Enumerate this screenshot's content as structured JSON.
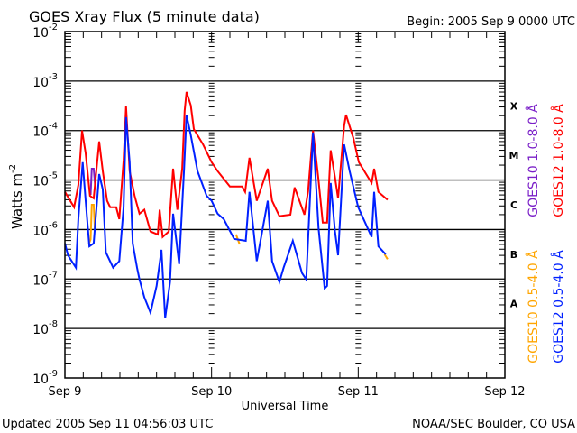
{
  "chart_data": {
    "type": "line",
    "title": "GOES Xray Flux (5 minute data)",
    "begin_label": "Begin:  2005 Sep 9 0000 UTC",
    "xlabel": "Universal Time",
    "ylabel": "Watts m",
    "ylabel_exp": "-2",
    "x_unit": "hours since 2005 Sep 9 0000 UTC",
    "xlim": [
      0,
      72
    ],
    "x_ticks": [
      {
        "value": 0,
        "label": "Sep 9"
      },
      {
        "value": 24,
        "label": "Sep 10"
      },
      {
        "value": 48,
        "label": "Sep 11"
      },
      {
        "value": 72,
        "label": "Sep 12"
      }
    ],
    "y_scale": "log10",
    "ylim_log10": [
      -9,
      -2
    ],
    "y_ticks": [
      {
        "value": -2,
        "base": "10",
        "exp": "-2"
      },
      {
        "value": -3,
        "base": "10",
        "exp": "-3"
      },
      {
        "value": -4,
        "base": "10",
        "exp": "-4"
      },
      {
        "value": -5,
        "base": "10",
        "exp": "-5"
      },
      {
        "value": -6,
        "base": "10",
        "exp": "-6"
      },
      {
        "value": -7,
        "base": "10",
        "exp": "-7"
      },
      {
        "value": -8,
        "base": "10",
        "exp": "-8"
      },
      {
        "value": -9,
        "base": "10",
        "exp": "-9"
      }
    ],
    "flare_classes": [
      {
        "label": "X",
        "value": -3.5
      },
      {
        "label": "M",
        "value": -4.5
      },
      {
        "label": "C",
        "value": -5.5
      },
      {
        "label": "B",
        "value": -6.5
      },
      {
        "label": "A",
        "value": -7.5
      }
    ],
    "grid": "horizontal at each decade",
    "legend_placement": "right, vertical",
    "series": [
      {
        "name": "GOES10 1.0-8.0 Å",
        "color": "#7a1fc8",
        "points": [
          [
            4.2,
            -5.3
          ],
          [
            4.4,
            -4.77
          ],
          [
            4.7,
            -4.77
          ],
          [
            5.0,
            -5.2
          ]
        ]
      },
      {
        "name": "GOES12 1.0-8.0 Å",
        "color": "#ff0000",
        "points": [
          [
            0,
            -5.24
          ],
          [
            1.5,
            -5.55
          ],
          [
            2.2,
            -5.1
          ],
          [
            2.8,
            -4.0
          ],
          [
            3.4,
            -4.46
          ],
          [
            4.1,
            -5.32
          ],
          [
            4.7,
            -5.37
          ],
          [
            5.6,
            -4.22
          ],
          [
            6.2,
            -4.82
          ],
          [
            6.9,
            -5.42
          ],
          [
            7.4,
            -5.55
          ],
          [
            8.4,
            -5.55
          ],
          [
            8.9,
            -5.79
          ],
          [
            9.6,
            -4.6
          ],
          [
            10,
            -3.51
          ],
          [
            10.6,
            -4.82
          ],
          [
            11.4,
            -5.32
          ],
          [
            12.2,
            -5.68
          ],
          [
            13,
            -5.6
          ],
          [
            14,
            -6.04
          ],
          [
            15.2,
            -6.1
          ],
          [
            15.5,
            -5.6
          ],
          [
            16,
            -6.15
          ],
          [
            17,
            -6.04
          ],
          [
            17.7,
            -4.77
          ],
          [
            18.4,
            -5.6
          ],
          [
            19.2,
            -4.77
          ],
          [
            19.6,
            -3.6
          ],
          [
            19.9,
            -3.22
          ],
          [
            20.6,
            -3.49
          ],
          [
            21.1,
            -3.97
          ],
          [
            22.6,
            -4.28
          ],
          [
            24,
            -4.64
          ],
          [
            25,
            -4.82
          ],
          [
            27,
            -5.13
          ],
          [
            29,
            -5.13
          ],
          [
            29.5,
            -5.24
          ],
          [
            30.2,
            -4.55
          ],
          [
            31,
            -5.13
          ],
          [
            31.4,
            -5.42
          ],
          [
            33.2,
            -4.77
          ],
          [
            33.9,
            -5.42
          ],
          [
            35.1,
            -5.73
          ],
          [
            36.9,
            -5.7
          ],
          [
            37.6,
            -5.15
          ],
          [
            39.2,
            -5.7
          ],
          [
            39.8,
            -5.22
          ],
          [
            40.6,
            -4.0
          ],
          [
            41.5,
            -5.0
          ],
          [
            42.2,
            -5.86
          ],
          [
            42.9,
            -5.86
          ],
          [
            43.5,
            -4.4
          ],
          [
            44.2,
            -4.95
          ],
          [
            44.7,
            -5.37
          ],
          [
            45.7,
            -3.91
          ],
          [
            46,
            -3.68
          ],
          [
            47.2,
            -4.15
          ],
          [
            48.1,
            -4.64
          ],
          [
            50.2,
            -5.06
          ],
          [
            50.6,
            -4.77
          ],
          [
            51.3,
            -5.24
          ],
          [
            52.8,
            -5.4
          ]
        ]
      },
      {
        "name": "GOES10 0.5-4.0 Å",
        "color": "#ffa500",
        "points": [
          [
            3.9,
            -6.3
          ],
          [
            4.2,
            -6.2
          ],
          [
            4.4,
            -5.5
          ],
          [
            4.7,
            -5.5
          ],
          [
            4.9,
            -6.0
          ],
          [
            28,
            -6.1
          ],
          [
            28.6,
            -6.3
          ],
          [
            52.3,
            -6.5
          ],
          [
            52.8,
            -6.6
          ]
        ]
      },
      {
        "name": "GOES12 0.5-4.0 Å",
        "color": "#0020ff",
        "points": [
          [
            0,
            -6.28
          ],
          [
            0.5,
            -6.52
          ],
          [
            1.8,
            -6.77
          ],
          [
            2.2,
            -5.79
          ],
          [
            2.9,
            -4.64
          ],
          [
            3.4,
            -5.42
          ],
          [
            4.0,
            -6.34
          ],
          [
            4.7,
            -6.28
          ],
          [
            5.6,
            -4.88
          ],
          [
            6.2,
            -5.19
          ],
          [
            6.7,
            -6.46
          ],
          [
            7.9,
            -6.77
          ],
          [
            8.9,
            -6.64
          ],
          [
            9.6,
            -5.55
          ],
          [
            10,
            -3.73
          ],
          [
            10.6,
            -4.64
          ],
          [
            11.1,
            -6.28
          ],
          [
            11.8,
            -6.77
          ],
          [
            12.2,
            -7.01
          ],
          [
            13,
            -7.37
          ],
          [
            14,
            -7.68
          ],
          [
            15,
            -7.14
          ],
          [
            15.8,
            -6.41
          ],
          [
            16.4,
            -7.79
          ],
          [
            17.2,
            -7.06
          ],
          [
            17.7,
            -5.68
          ],
          [
            18.7,
            -6.7
          ],
          [
            19.5,
            -4.77
          ],
          [
            19.9,
            -3.69
          ],
          [
            20.6,
            -4.09
          ],
          [
            21.7,
            -4.82
          ],
          [
            23.2,
            -5.32
          ],
          [
            24,
            -5.42
          ],
          [
            25,
            -5.68
          ],
          [
            26,
            -5.79
          ],
          [
            27.7,
            -6.19
          ],
          [
            29.6,
            -6.23
          ],
          [
            30.2,
            -5.24
          ],
          [
            31.4,
            -6.64
          ],
          [
            32.2,
            -6.1
          ],
          [
            33.2,
            -5.42
          ],
          [
            33.9,
            -6.64
          ],
          [
            35.1,
            -7.06
          ],
          [
            35.8,
            -6.77
          ],
          [
            37.3,
            -6.23
          ],
          [
            38.8,
            -6.88
          ],
          [
            39.5,
            -7.01
          ],
          [
            40.6,
            -4.04
          ],
          [
            41.5,
            -5.97
          ],
          [
            42.5,
            -7.19
          ],
          [
            42.9,
            -7.14
          ],
          [
            43.5,
            -5.06
          ],
          [
            44.2,
            -6.04
          ],
          [
            44.7,
            -6.52
          ],
          [
            45.7,
            -4.28
          ],
          [
            46.6,
            -4.82
          ],
          [
            48,
            -5.55
          ],
          [
            50.2,
            -6.15
          ],
          [
            50.6,
            -5.24
          ],
          [
            51.3,
            -6.34
          ],
          [
            52.5,
            -6.5
          ]
        ]
      }
    ]
  },
  "footer": {
    "updated": "Updated 2005 Sep 11 04:56:03 UTC",
    "source": "NOAA/SEC Boulder, CO USA"
  }
}
